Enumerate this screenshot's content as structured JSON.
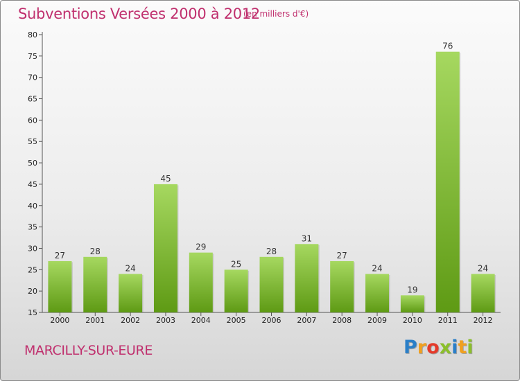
{
  "header": {
    "title": "Subventions Versées 2000 à 2012",
    "unit": "(en milliers d'€)"
  },
  "footer": {
    "commune": "MARCILLY-SUR-EURE",
    "logo_letters": [
      {
        "char": "P",
        "color": "#2a7fc8"
      },
      {
        "char": "r",
        "color": "#f0a020"
      },
      {
        "char": "o",
        "color": "#e53a2a"
      },
      {
        "char": "x",
        "color": "#8bbf2a"
      },
      {
        "char": "i",
        "color": "#2a7fc8"
      },
      {
        "char": "t",
        "color": "#f0a020"
      },
      {
        "char": "i",
        "color": "#8bbf2a"
      }
    ]
  },
  "colors": {
    "title": "#c0306e",
    "bar_light": "#a6d860",
    "bar_dark": "#5e9a14"
  },
  "chart_data": {
    "type": "bar",
    "title": "Subventions Versées 2000 à 2012",
    "subtitle": "(en milliers d'€)",
    "xlabel": "",
    "ylabel": "",
    "categories": [
      "2000",
      "2001",
      "2002",
      "2003",
      "2004",
      "2005",
      "2006",
      "2007",
      "2008",
      "2009",
      "2010",
      "2011",
      "2012"
    ],
    "values": [
      27,
      28,
      24,
      45,
      29,
      25,
      28,
      31,
      27,
      24,
      19,
      76,
      24
    ],
    "ylim": [
      15,
      80
    ],
    "yticks": [
      15,
      20,
      25,
      30,
      35,
      40,
      45,
      50,
      55,
      60,
      65,
      70,
      75,
      80
    ],
    "grid": false,
    "legend": "none"
  }
}
